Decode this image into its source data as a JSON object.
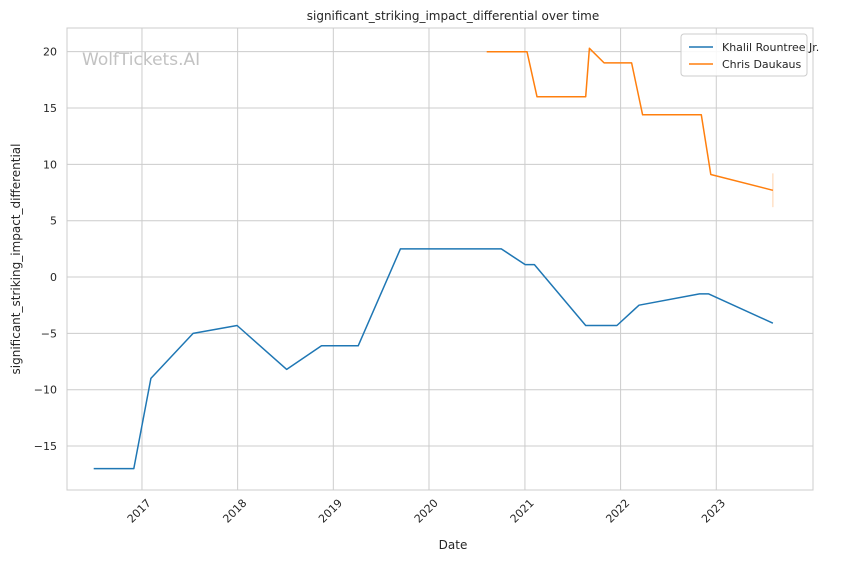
{
  "chart_data": {
    "type": "line",
    "title": "significant_striking_impact_differential over time",
    "xlabel": "Date",
    "ylabel": "significant_striking_impact_differential",
    "watermark": "WolfTickets.AI",
    "x_ticks": [
      "2017",
      "2018",
      "2019",
      "2020",
      "2021",
      "2022",
      "2023"
    ],
    "y_ticks": [
      "−15",
      "−10",
      "−5",
      "0",
      "5",
      "10",
      "15",
      "20"
    ],
    "xlim": [
      "2016-03-21",
      "2024-01-05"
    ],
    "ylim": [
      -18.9,
      22.1
    ],
    "grid": true,
    "legend_position": "top-right",
    "series": [
      {
        "name": "Khalil Rountree Jr.",
        "color": "#1f77b4",
        "points": [
          [
            "2016-07-01",
            -17.0
          ],
          [
            "2016-12-01",
            -17.0
          ],
          [
            "2017-02-04",
            -9.0
          ],
          [
            "2017-07-15",
            -5.0
          ],
          [
            "2017-12-30",
            -4.3
          ],
          [
            "2018-07-07",
            -8.2
          ],
          [
            "2018-11-17",
            -6.1
          ],
          [
            "2019-04-06",
            -6.1
          ],
          [
            "2019-09-14",
            2.5
          ],
          [
            "2020-10-03",
            2.5
          ],
          [
            "2021-01-02",
            1.1
          ],
          [
            "2021-02-06",
            1.1
          ],
          [
            "2021-08-21",
            -4.3
          ],
          [
            "2021-12-18",
            -4.3
          ],
          [
            "2022-03-12",
            -2.5
          ],
          [
            "2022-10-29",
            -1.5
          ],
          [
            "2022-12-03",
            -1.5
          ],
          [
            "2023-08-05",
            -4.1
          ]
        ]
      },
      {
        "name": "Chris Daukaus",
        "color": "#ff7f0e",
        "points": [
          [
            "2020-08-08",
            20.0
          ],
          [
            "2021-01-09",
            20.0
          ],
          [
            "2021-02-16",
            16.0
          ],
          [
            "2021-08-21",
            16.0
          ],
          [
            "2021-09-04",
            20.3
          ],
          [
            "2021-10-30",
            19.0
          ],
          [
            "2022-02-12",
            19.0
          ],
          [
            "2022-03-26",
            14.4
          ],
          [
            "2022-11-05",
            14.4
          ],
          [
            "2022-12-11",
            9.1
          ],
          [
            "2023-08-05",
            7.7
          ]
        ],
        "error_bar": {
          "x": "2023-08-05",
          "low": 6.2,
          "high": 9.2
        }
      }
    ]
  }
}
